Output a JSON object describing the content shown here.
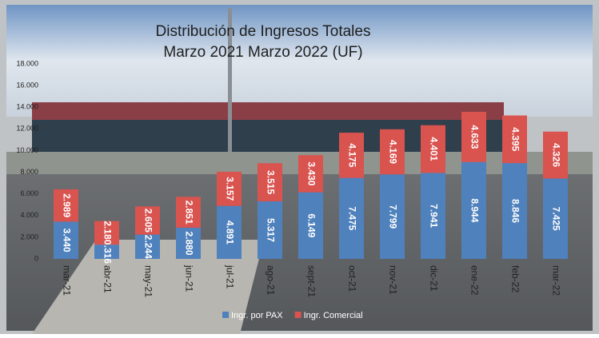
{
  "chart_data": {
    "type": "bar",
    "stacked": true,
    "title": "Distribución de Ingresos Totales",
    "subtitle": "Marzo 2021 Marzo 2022 (UF)",
    "categories": [
      "mar-21",
      "abr-21",
      "may-21",
      "jun-21",
      "jul-21",
      "ago-21",
      "sept-21",
      "oct-21",
      "nov-21",
      "dic-21",
      "ene-22",
      "feb-22",
      "mar-22"
    ],
    "series": [
      {
        "name": "Ingr. por PAX",
        "color": "#4f81bd",
        "values": [
          3440,
          1316,
          2244,
          2880,
          4891,
          5317,
          6149,
          7475,
          7799,
          7941,
          8944,
          8846,
          7425
        ],
        "value_labels": [
          "3.440",
          "1.316",
          "2.244",
          "2.880",
          "4.891",
          "5.317",
          "6.149",
          "7.475",
          "7.799",
          "7.941",
          "8.944",
          "8.846",
          "7.425"
        ]
      },
      {
        "name": "Ingr. Comercial",
        "color": "#d9534f",
        "values": [
          2989,
          2180,
          2605,
          2851,
          3157,
          3515,
          3430,
          4175,
          4169,
          4401,
          4633,
          4395,
          4326
        ],
        "value_labels": [
          "2.989",
          "2.180",
          "2.605",
          "2.851",
          "3.157",
          "3.515",
          "3.430",
          "4.175",
          "4.169",
          "4.401",
          "4.633",
          "4.395",
          "4.326"
        ]
      }
    ],
    "ylim": [
      0,
      18000
    ],
    "yticks": [
      0,
      {
        "value": 2000,
        "label": "2.000"
      },
      {
        "value": 4000,
        "label": "4.000"
      },
      {
        "value": 6000,
        "label": "6.000"
      },
      {
        "value": 8000,
        "label": "8.000"
      },
      {
        "value": 10000,
        "label": "10.000"
      },
      {
        "value": 12000,
        "label": "12.000"
      },
      {
        "value": 14000,
        "label": "14.000"
      },
      {
        "value": 16000,
        "label": "16.000"
      },
      {
        "value": 18000,
        "label": "18.000"
      }
    ],
    "grid": false,
    "legend": "bottom"
  }
}
